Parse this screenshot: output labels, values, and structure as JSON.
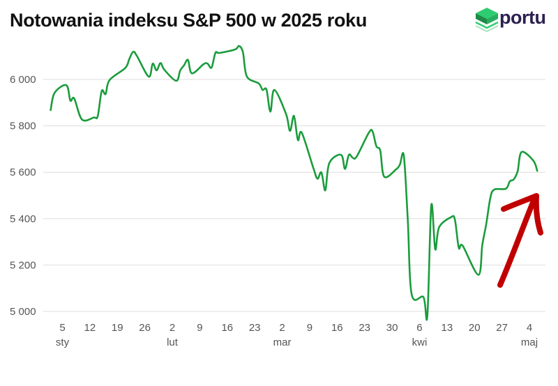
{
  "title": "Notowania indeksu S&P 500 w 2025 roku",
  "logo": {
    "text": "portu"
  },
  "colors": {
    "line": "#1a9c3c",
    "arrow": "#c00000",
    "grid": "#dedede",
    "logo_green_light": "#2ecc71",
    "logo_green_dark": "#1e8a45",
    "logo_text": "#2d2150"
  },
  "chart_data": {
    "type": "line",
    "title": "Notowania indeksu S&P 500 w 2025 roku",
    "xlabel": "",
    "ylabel": "",
    "ylim": [
      4950,
      6180
    ],
    "xlim": [
      "2025-01-01",
      "2025-05-07"
    ],
    "y_ticks": [
      {
        "value": 5000,
        "label": "5 000"
      },
      {
        "value": 5200,
        "label": "5 200"
      },
      {
        "value": 5400,
        "label": "5 400"
      },
      {
        "value": 5600,
        "label": "5 600"
      },
      {
        "value": 5800,
        "label": "5 800"
      },
      {
        "value": 6000,
        "label": "6 000"
      }
    ],
    "x_ticks": [
      {
        "date": "2025-01-05",
        "label": "5"
      },
      {
        "date": "2025-01-12",
        "label": "12"
      },
      {
        "date": "2025-01-19",
        "label": "19"
      },
      {
        "date": "2025-01-26",
        "label": "26"
      },
      {
        "date": "2025-02-02",
        "label": "2"
      },
      {
        "date": "2025-02-09",
        "label": "9"
      },
      {
        "date": "2025-02-16",
        "label": "16"
      },
      {
        "date": "2025-02-23",
        "label": "23"
      },
      {
        "date": "2025-03-02",
        "label": "2"
      },
      {
        "date": "2025-03-09",
        "label": "9"
      },
      {
        "date": "2025-03-16",
        "label": "16"
      },
      {
        "date": "2025-03-23",
        "label": "23"
      },
      {
        "date": "2025-03-30",
        "label": "30"
      },
      {
        "date": "2025-04-06",
        "label": "6"
      },
      {
        "date": "2025-04-13",
        "label": "13"
      },
      {
        "date": "2025-04-20",
        "label": "20"
      },
      {
        "date": "2025-04-27",
        "label": "27"
      },
      {
        "date": "2025-05-04",
        "label": "4"
      }
    ],
    "month_labels": [
      {
        "date": "2025-01-05",
        "label": "sty"
      },
      {
        "date": "2025-02-02",
        "label": "lut"
      },
      {
        "date": "2025-03-02",
        "label": "mar"
      },
      {
        "date": "2025-04-06",
        "label": "kwi"
      },
      {
        "date": "2025-05-04",
        "label": "maj"
      }
    ],
    "grid": true,
    "legend": "none",
    "series": [
      {
        "x": [
          "2025-01-02",
          "2025-01-03",
          "2025-01-06",
          "2025-01-07",
          "2025-01-08",
          "2025-01-10",
          "2025-01-13",
          "2025-01-14",
          "2025-01-15",
          "2025-01-16",
          "2025-01-17",
          "2025-01-21",
          "2025-01-22",
          "2025-01-23",
          "2025-01-24",
          "2025-01-27",
          "2025-01-28",
          "2025-01-29",
          "2025-01-30",
          "2025-01-31",
          "2025-02-03",
          "2025-02-04",
          "2025-02-05",
          "2025-02-06",
          "2025-02-07",
          "2025-02-10",
          "2025-02-11",
          "2025-02-12",
          "2025-02-13",
          "2025-02-14",
          "2025-02-18",
          "2025-02-19",
          "2025-02-20",
          "2025-02-21",
          "2025-02-24",
          "2025-02-25",
          "2025-02-26",
          "2025-02-27",
          "2025-02-28",
          "2025-03-03",
          "2025-03-04",
          "2025-03-05",
          "2025-03-06",
          "2025-03-07",
          "2025-03-10",
          "2025-03-11",
          "2025-03-12",
          "2025-03-13",
          "2025-03-14",
          "2025-03-17",
          "2025-03-18",
          "2025-03-19",
          "2025-03-20",
          "2025-03-21",
          "2025-03-24",
          "2025-03-25",
          "2025-03-26",
          "2025-03-27",
          "2025-03-28",
          "2025-03-31",
          "2025-04-01",
          "2025-04-02",
          "2025-04-03",
          "2025-04-04",
          "2025-04-07",
          "2025-04-08",
          "2025-04-09",
          "2025-04-10",
          "2025-04-11",
          "2025-04-14",
          "2025-04-15",
          "2025-04-16",
          "2025-04-17",
          "2025-04-21",
          "2025-04-22",
          "2025-04-23",
          "2025-04-24",
          "2025-04-25",
          "2025-04-28",
          "2025-04-29",
          "2025-04-30",
          "2025-05-01",
          "2025-05-02",
          "2025-05-05",
          "2025-05-06"
        ],
        "values": [
          5868,
          5942,
          5975,
          5909,
          5918,
          5827,
          5836,
          5842,
          5950,
          5937,
          5997,
          6049,
          6086,
          6119,
          6101,
          6012,
          6068,
          6039,
          6071,
          6041,
          5994,
          6038,
          6061,
          6084,
          6026,
          6066,
          6068,
          6051,
          6115,
          6114,
          6129,
          6144,
          6117,
          6013,
          5983,
          5955,
          5956,
          5861,
          5955,
          5850,
          5778,
          5843,
          5739,
          5770,
          5615,
          5572,
          5599,
          5522,
          5639,
          5675,
          5614,
          5675,
          5662,
          5668,
          5768,
          5777,
          5712,
          5693,
          5581,
          5612,
          5633,
          5671,
          5397,
          5074,
          5062,
          4982,
          5457,
          5268,
          5363,
          5406,
          5397,
          5275,
          5283,
          5158,
          5287,
          5376,
          5485,
          5525,
          5529,
          5561,
          5569,
          5604,
          5687,
          5650,
          5606
        ]
      }
    ],
    "annotations": [
      {
        "type": "arrow",
        "direction": "up-right",
        "color": "#c00000",
        "note": ""
      }
    ]
  }
}
